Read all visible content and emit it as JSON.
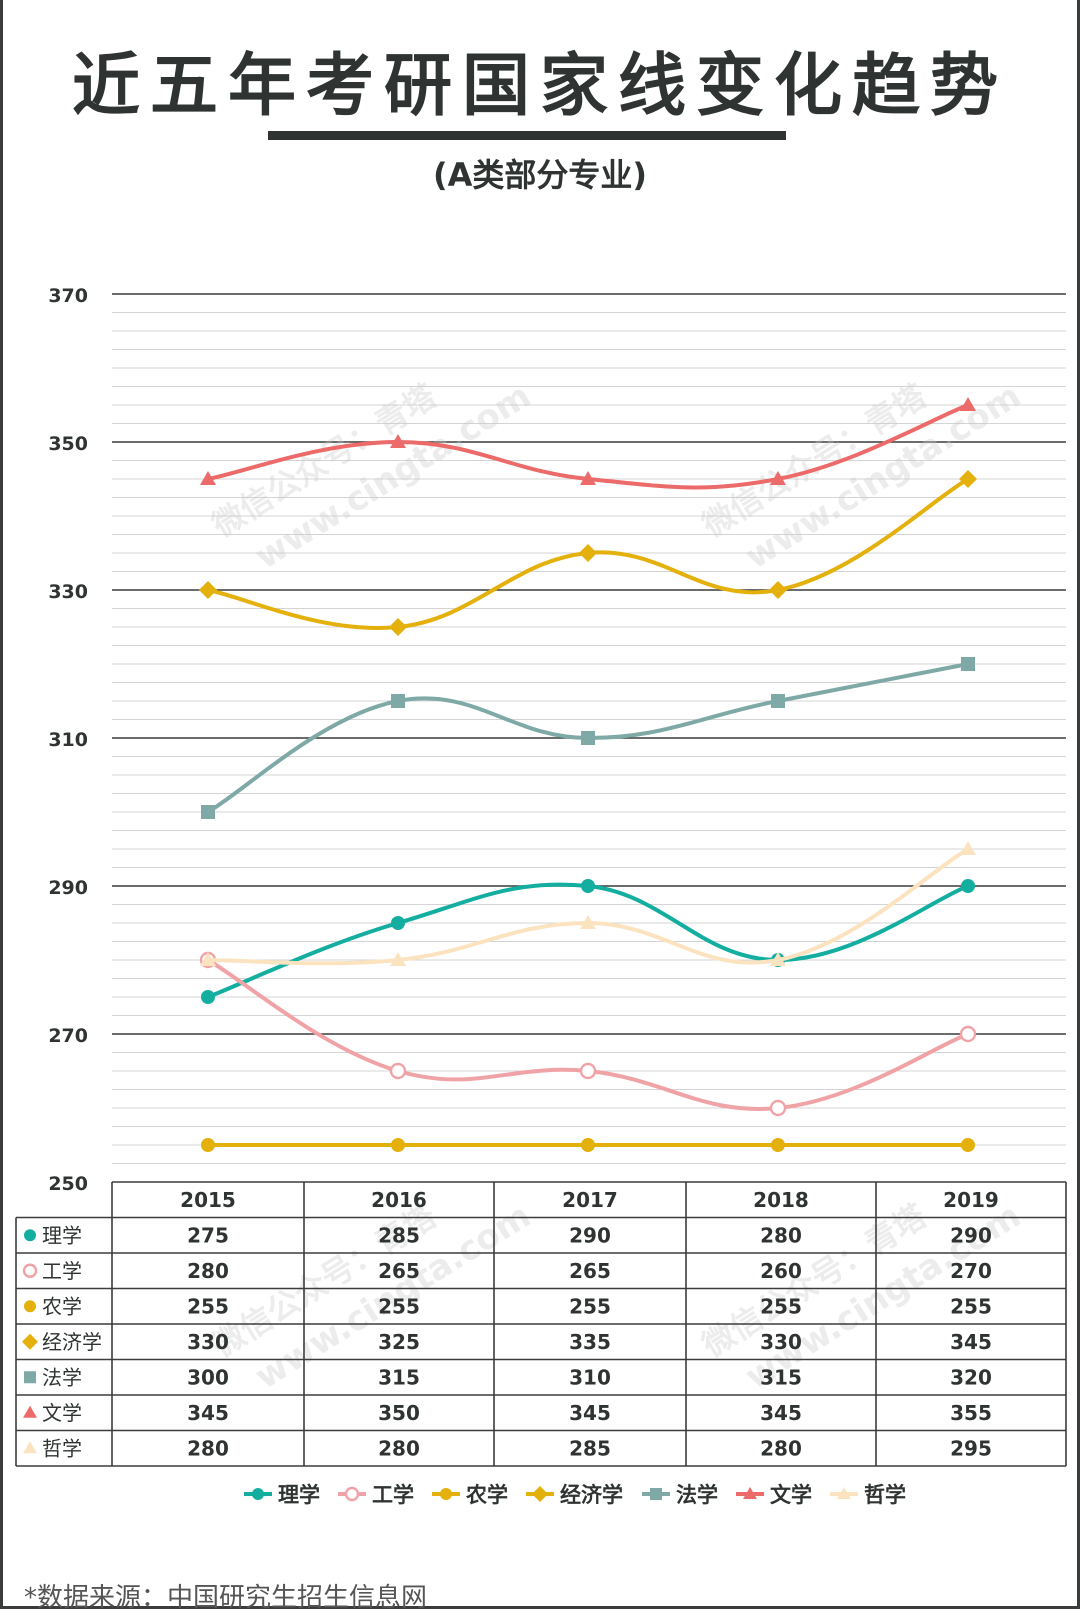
{
  "title": "近五年考研国家线变化趋势",
  "subtitle": "(A类部分专业)",
  "source": "*数据来源：中国研究生招生信息网",
  "watermarks": [
    "微信公众号：青塔",
    "www.cingta.com"
  ],
  "chart_data": {
    "type": "line",
    "categories": [
      "2015",
      "2016",
      "2017",
      "2018",
      "2019"
    ],
    "ylim": [
      250,
      370
    ],
    "yticks": [
      "250",
      "270",
      "290",
      "310",
      "330",
      "350",
      "370"
    ],
    "grid": true,
    "legend": "bottom",
    "series": [
      {
        "name": "理学",
        "values": [
          275,
          285,
          290,
          280,
          290
        ],
        "color": "#13aea0",
        "marker": "circle"
      },
      {
        "name": "工学",
        "values": [
          280,
          265,
          265,
          260,
          270
        ],
        "color": "#f0a3a6",
        "marker": "circle-open"
      },
      {
        "name": "农学",
        "values": [
          255,
          255,
          255,
          255,
          255
        ],
        "color": "#e4b00c",
        "marker": "circle"
      },
      {
        "name": "经济学",
        "values": [
          330,
          325,
          335,
          330,
          345
        ],
        "color": "#e4b00c",
        "marker": "diamond"
      },
      {
        "name": "法学",
        "values": [
          300,
          315,
          310,
          315,
          320
        ],
        "color": "#7fa9a6",
        "marker": "square"
      },
      {
        "name": "文学",
        "values": [
          345,
          350,
          345,
          345,
          355
        ],
        "color": "#ec6a6a",
        "marker": "triangle"
      },
      {
        "name": "哲学",
        "values": [
          280,
          280,
          285,
          280,
          295
        ],
        "color": "#fbe3c0",
        "marker": "triangle"
      }
    ]
  }
}
